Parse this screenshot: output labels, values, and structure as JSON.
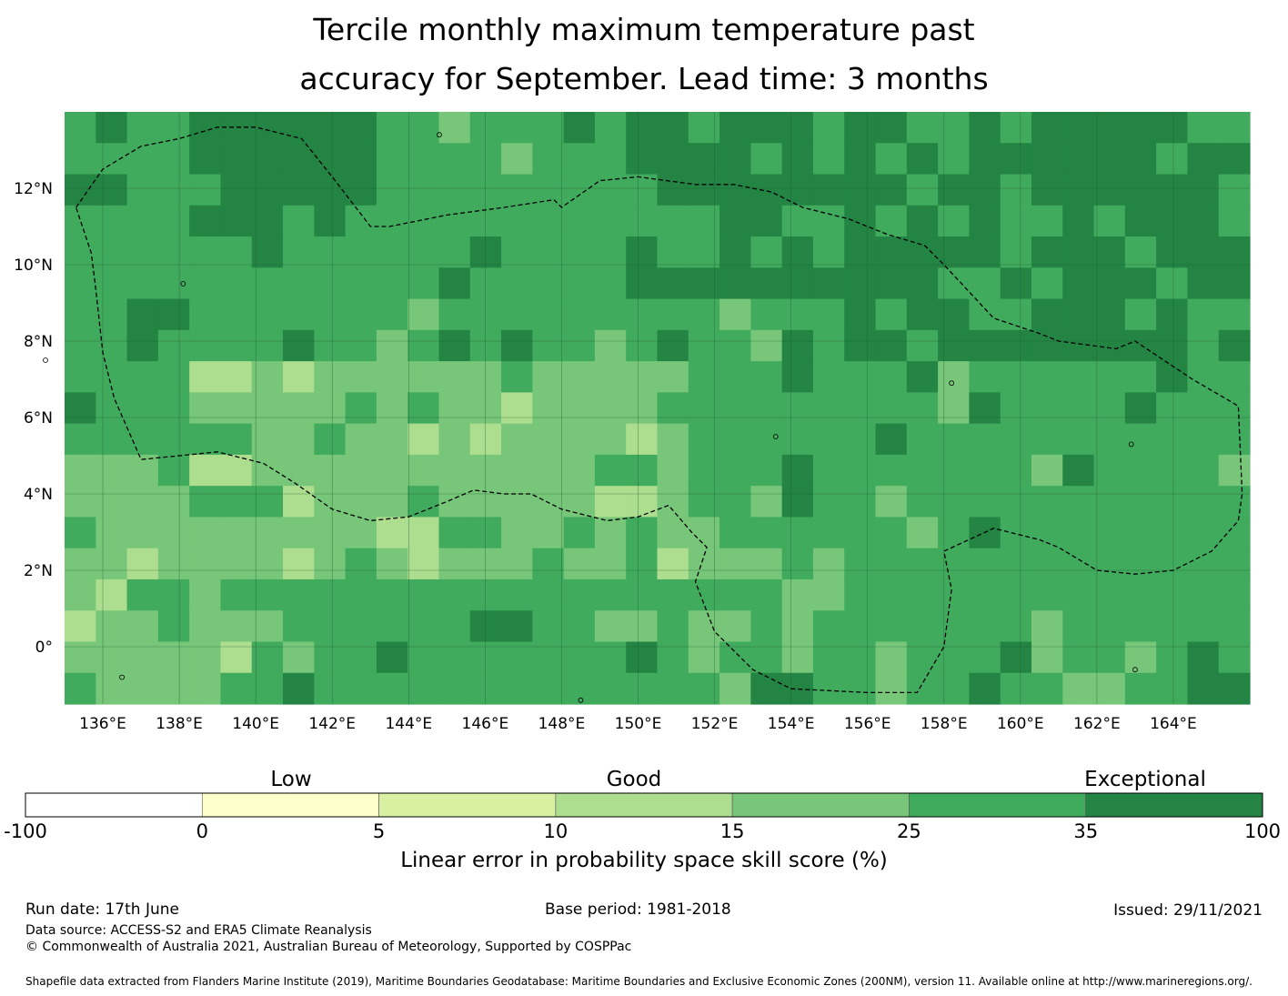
{
  "title": {
    "line1": "Tercile monthly maximum temperature past",
    "line2": "accuracy for September. Lead time: 3 months"
  },
  "map": {
    "lon_labels": [
      "136°E",
      "138°E",
      "140°E",
      "142°E",
      "144°E",
      "146°E",
      "148°E",
      "150°E",
      "152°E",
      "154°E",
      "156°E",
      "158°E",
      "160°E",
      "162°E",
      "164°E"
    ],
    "lat_labels": [
      "12°N",
      "10°N",
      "8°N",
      "6°N",
      "4°N",
      "2°N",
      "0°"
    ],
    "lon_values": [
      136,
      138,
      140,
      142,
      144,
      146,
      148,
      150,
      152,
      154,
      156,
      158,
      160,
      162,
      164
    ],
    "lat_values": [
      12,
      10,
      8,
      6,
      4,
      2,
      0
    ],
    "extent": {
      "lon_min": 135.0,
      "lon_max": 166.0,
      "lat_min": -1.5,
      "lat_max": 14.0
    },
    "grid_lines": true,
    "eez_boundary": "dashed"
  },
  "colorbar": {
    "categories": [
      "Low",
      "Good",
      "Exceptional"
    ],
    "ticks": [
      "-100",
      "0",
      "5",
      "10",
      "15",
      "25",
      "35",
      "100"
    ],
    "colors": [
      "#ffffff",
      "#ffffcc",
      "#d9f0a3",
      "#addd8e",
      "#78c679",
      "#41ab5d",
      "#238443"
    ],
    "label": "Linear error in probability space skill score (%)"
  },
  "footer": {
    "run_date": "Run date: 17th June",
    "base_period": "Base period: 1981-2018",
    "issued": "Issued: 29/11/2021",
    "data_source": "Data source: ACCESS-S2 and ERA5 Climate Reanalysis",
    "copyright": "© Commonwealth of Australia 2021, Australian Bureau of Meteorology, Supported by COSPPac",
    "shapefile": "Shapefile data extracted from Flanders Marine Institute (2019), Maritime Boundaries Geodatabase: Maritime Boundaries and Exclusive Economic Zones (200NM), version 11. Available online at http://www.marineregions.org/."
  }
}
